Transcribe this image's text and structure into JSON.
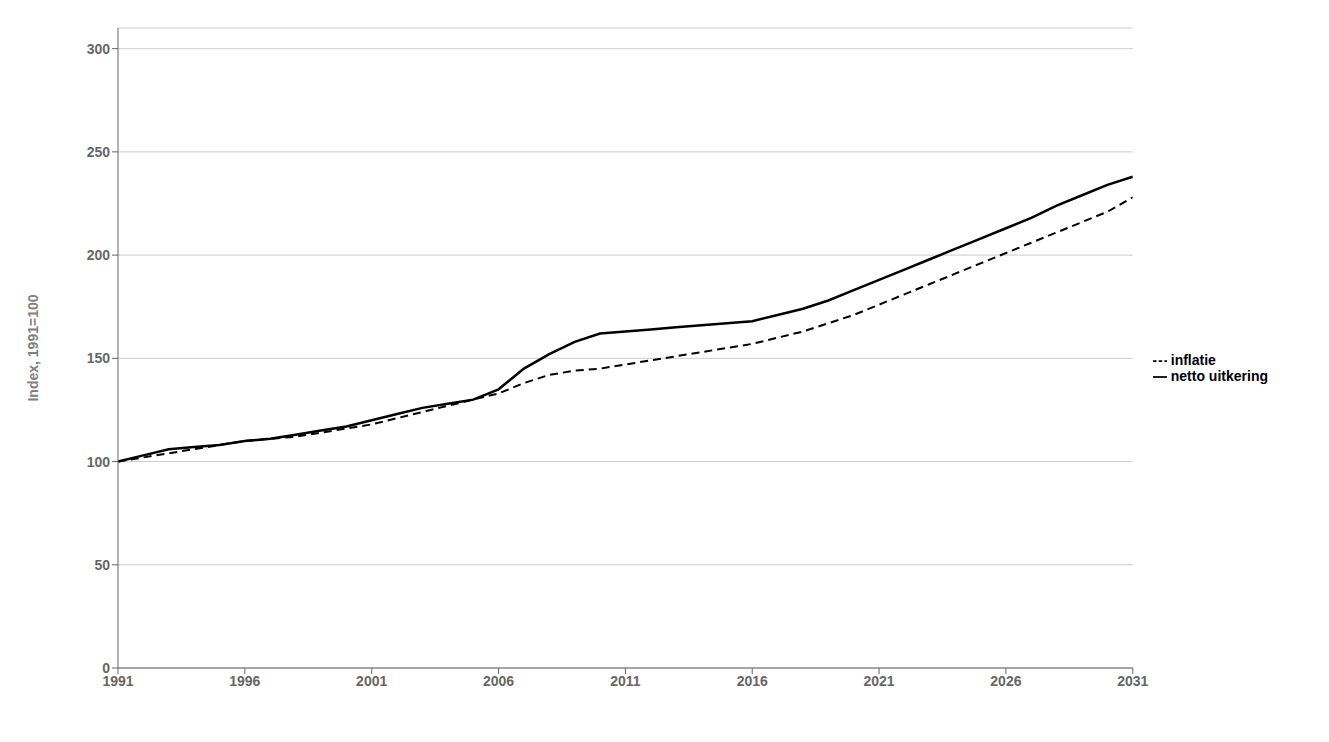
{
  "chart_data": {
    "type": "line",
    "x": [
      1991,
      1992,
      1993,
      1994,
      1995,
      1996,
      1997,
      1998,
      1999,
      2000,
      2001,
      2002,
      2003,
      2004,
      2005,
      2006,
      2007,
      2008,
      2009,
      2010,
      2011,
      2012,
      2013,
      2014,
      2015,
      2016,
      2017,
      2018,
      2019,
      2020,
      2021,
      2022,
      2023,
      2024,
      2025,
      2026,
      2027,
      2028,
      2029,
      2030,
      2031
    ],
    "series": [
      {
        "name": "netto uitkering",
        "color": "#000000",
        "line_style": "solid",
        "values": [
          100,
          103,
          106,
          107,
          108,
          110,
          111,
          113,
          115,
          117,
          120,
          123,
          126,
          128,
          130,
          135,
          145,
          152,
          158,
          162,
          163,
          164,
          165,
          166,
          167,
          168,
          171,
          174,
          178,
          183,
          188,
          193,
          198,
          203,
          208,
          213,
          218,
          224,
          229,
          234,
          238
        ]
      },
      {
        "name": "inflatie",
        "color": "#000000",
        "line_style": "dashed",
        "values": [
          100,
          102,
          104,
          106,
          108,
          110,
          111,
          112,
          114,
          116,
          118,
          121,
          124,
          127,
          130,
          133,
          138,
          142,
          144,
          145,
          147,
          149,
          151,
          153,
          155,
          157,
          160,
          163,
          167,
          171,
          176,
          181,
          186,
          191,
          196,
          201,
          206,
          211,
          216,
          221,
          228
        ]
      }
    ],
    "ylabel": "Index, 1991=100",
    "xlim": [
      1991,
      2031
    ],
    "xticks": [
      1991,
      1996,
      2001,
      2006,
      2011,
      2016,
      2021,
      2026,
      2031
    ],
    "ylim": [
      0,
      310
    ],
    "yticks": [
      0,
      50,
      100,
      150,
      200,
      250,
      300
    ],
    "grid": true,
    "legend": "right"
  }
}
